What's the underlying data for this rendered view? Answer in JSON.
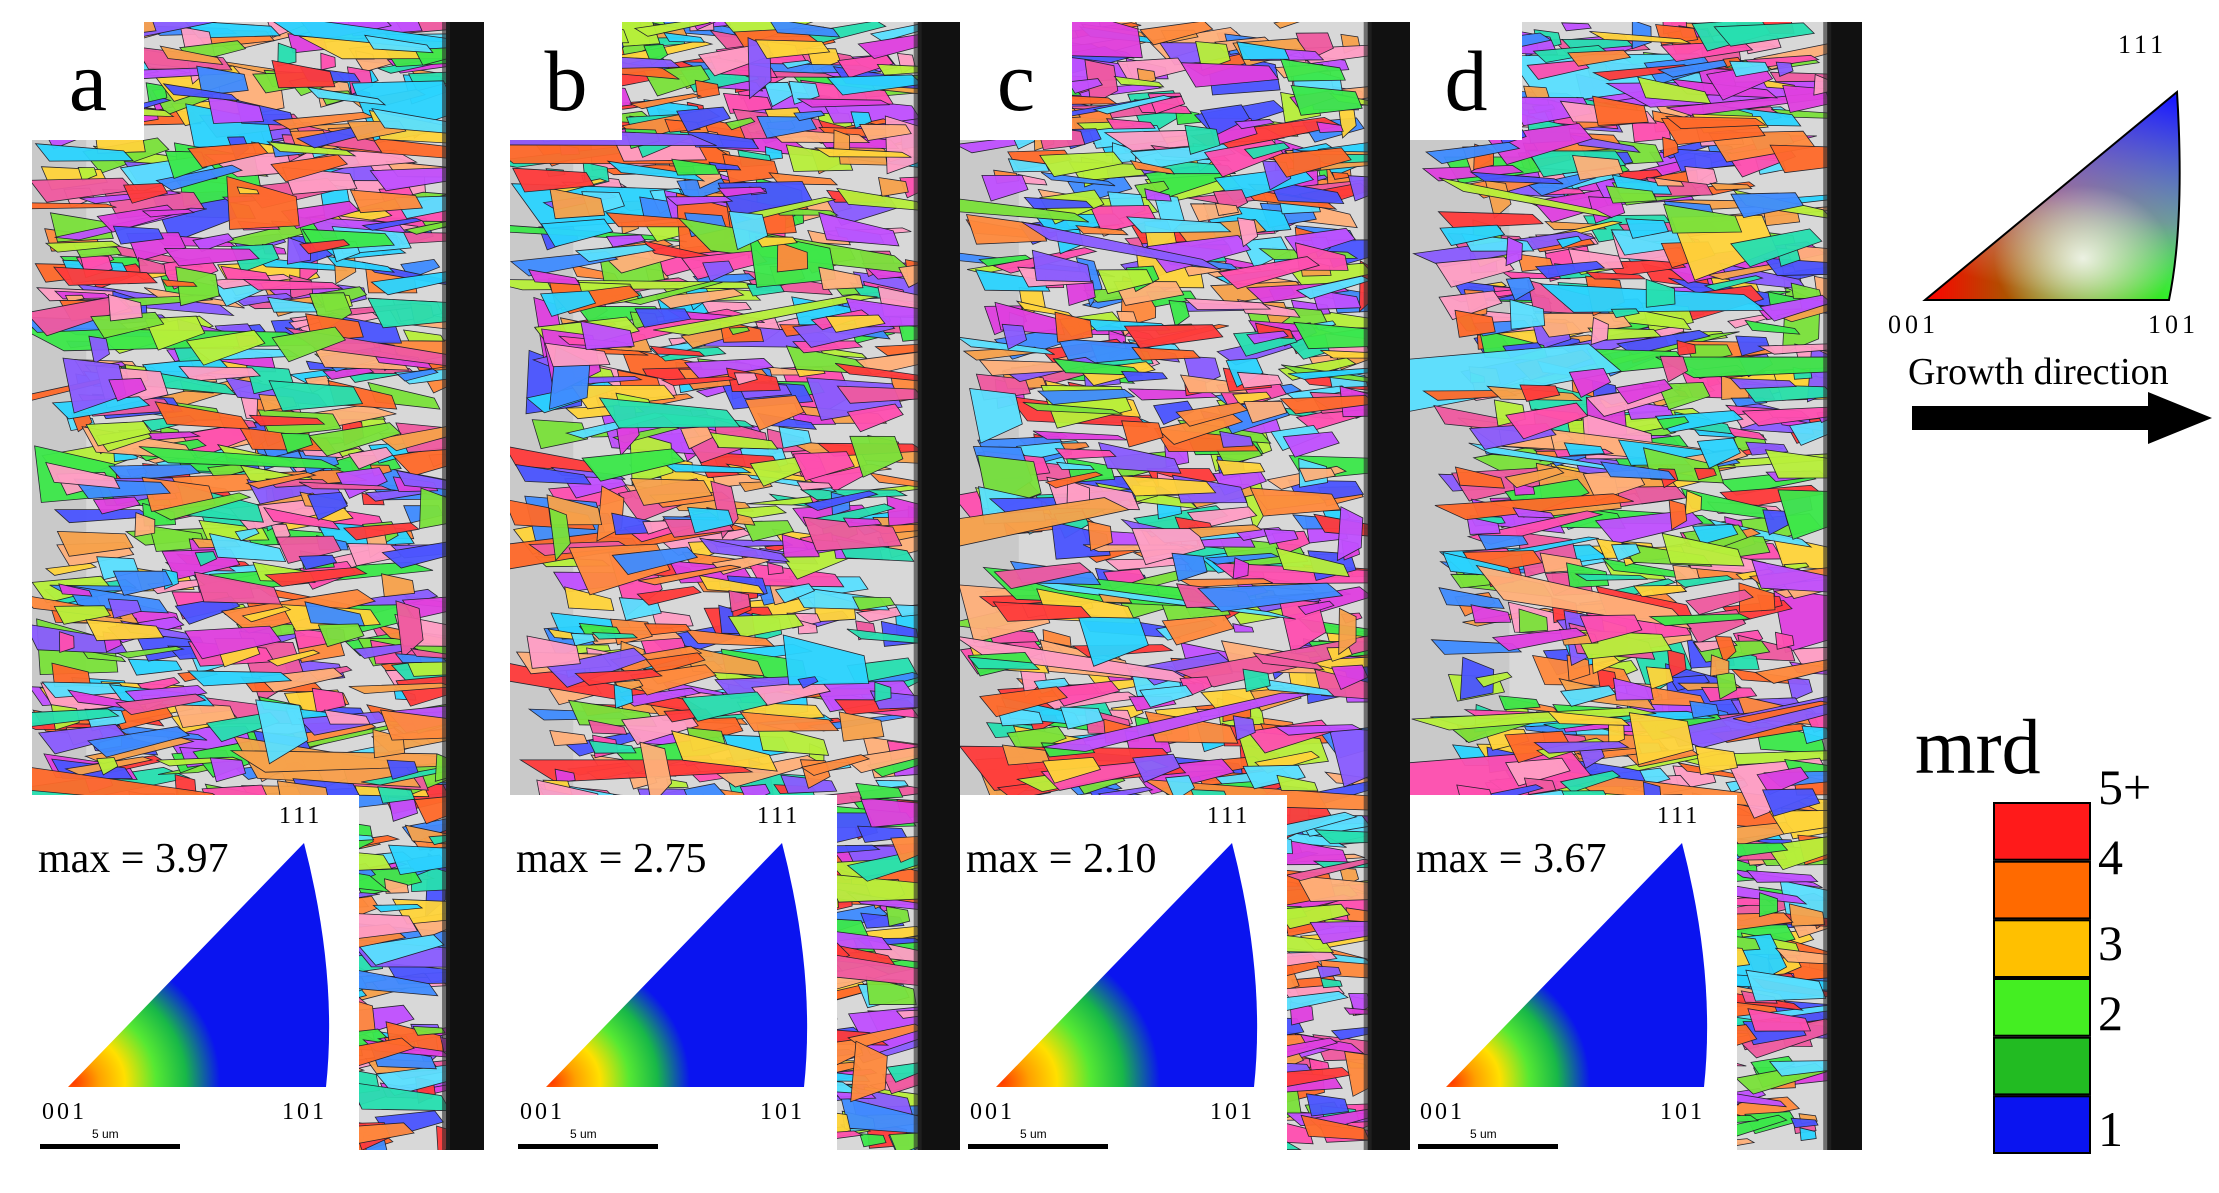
{
  "panels": [
    {
      "letter": "a",
      "max_text": "max = 3.97",
      "pole_111": "111",
      "pole_001": "001",
      "pole_101": "101",
      "scale_text": "5 um",
      "seed": 11,
      "dark_frac": 0.24,
      "gray_end": 0.12,
      "inset_green": 0.55
    },
    {
      "letter": "b",
      "max_text": "max = 2.75",
      "pole_111": "111",
      "pole_001": "001",
      "pole_101": "101",
      "scale_text": "5 um",
      "seed": 23,
      "dark_frac": 0.28,
      "gray_end": 0.14,
      "inset_green": 0.5
    },
    {
      "letter": "c",
      "max_text": "max = 2.10",
      "pole_111": "111",
      "pole_001": "001",
      "pole_101": "101",
      "scale_text": "5 um",
      "seed": 37,
      "dark_frac": 0.28,
      "gray_end": 0.13,
      "inset_green": 0.62
    },
    {
      "letter": "d",
      "max_text": "max = 3.67",
      "pole_111": "111",
      "pole_001": "001",
      "pole_101": "101",
      "scale_text": "5 um",
      "seed": 53,
      "dark_frac": 0.22,
      "gray_end": 0.22,
      "inset_green": 0.5
    }
  ],
  "ipf_key": {
    "pole_111": "111",
    "pole_001": "001",
    "pole_101": "101",
    "growth_label": "Growth direction"
  },
  "mrd_legend": {
    "title": "mrd",
    "ticks": [
      "5+",
      "4",
      "3",
      "2",
      "1"
    ],
    "colors": [
      "#ff1a1a",
      "#ff6a00",
      "#ffc000",
      "#44ee22",
      "#22bb22",
      "#0a14f0"
    ]
  }
}
